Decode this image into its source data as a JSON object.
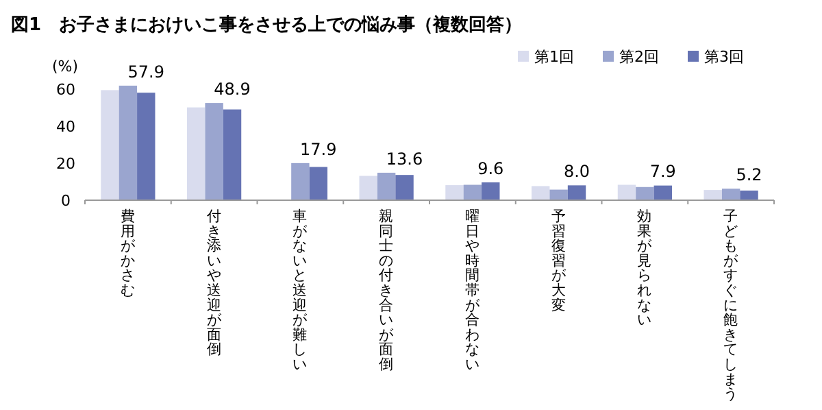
{
  "chart_data": {
    "type": "bar",
    "title": "図1　お子さまにおけいこ事をさせる上での悩み事（複数回答）",
    "ylabel": "(%)",
    "categories": [
      "費用がかさむ",
      "付き添いや送迎が面倒",
      "車がないと送迎が難しい",
      "親同士の付き合いが面倒",
      "曜日や時間帯が合わない",
      "予習復習が大変",
      "効果が見られない",
      "子どもがすぐに飽きてしまう"
    ],
    "series": [
      {
        "name": "第1回",
        "color": "#d9dcee",
        "values": [
          59.3,
          50.0,
          null,
          13.1,
          8.1,
          7.6,
          8.3,
          5.5
        ]
      },
      {
        "name": "第2回",
        "color": "#9aa5cf",
        "values": [
          61.7,
          52.4,
          20.0,
          14.8,
          8.3,
          5.7,
          7.1,
          6.2
        ]
      },
      {
        "name": "第3回",
        "color": "#6573b3",
        "values": [
          57.9,
          48.9,
          17.9,
          13.6,
          9.6,
          8.0,
          7.9,
          5.2
        ],
        "value_labels": [
          "57.9",
          "48.9",
          "17.9",
          "13.6",
          "9.6",
          "8.0",
          "7.9",
          "5.2"
        ]
      }
    ],
    "ylim": [
      0,
      65
    ],
    "yticks": [
      0,
      20,
      40,
      60
    ],
    "legend": "top right",
    "grid": false
  }
}
